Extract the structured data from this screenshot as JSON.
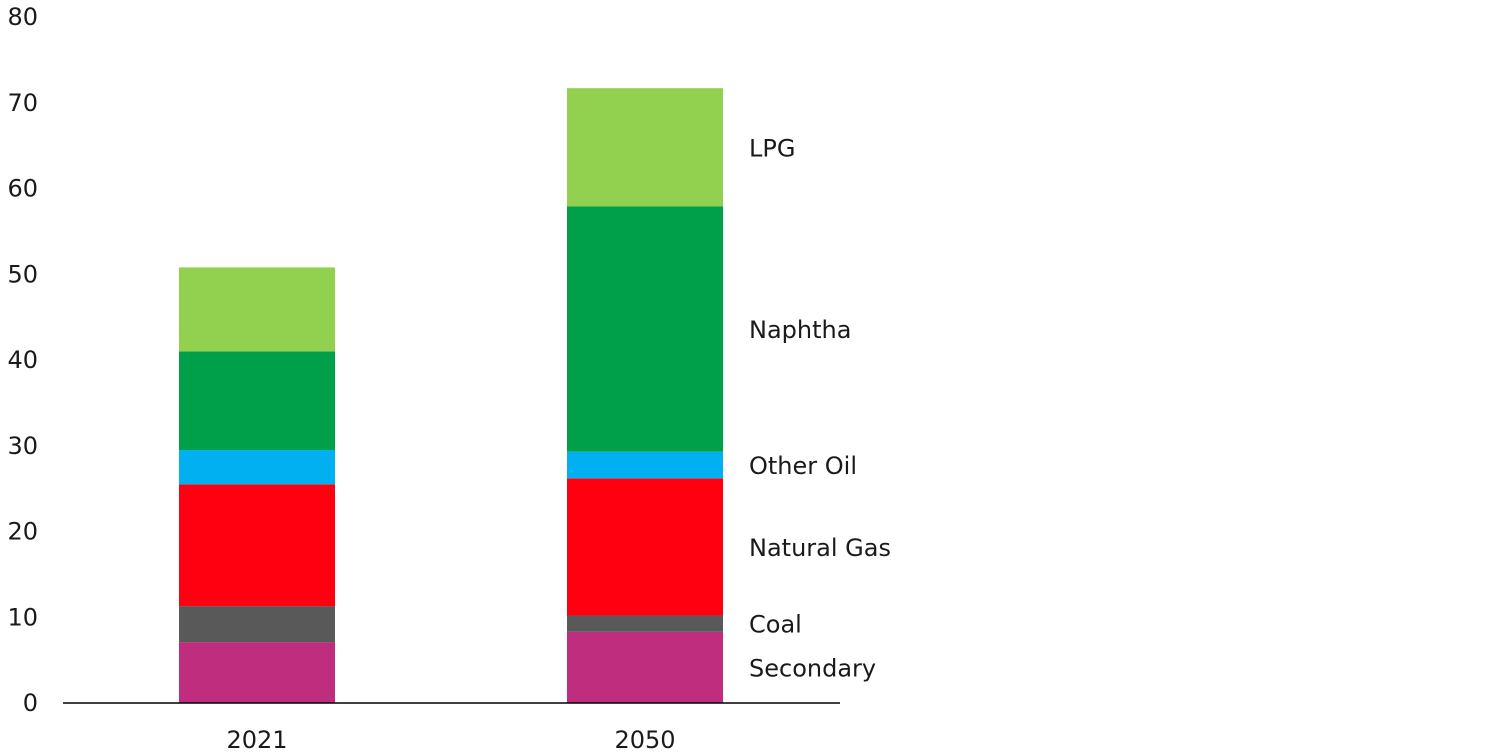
{
  "chart_data": {
    "type": "bar",
    "stacked": true,
    "categories": [
      "2021",
      "2050"
    ],
    "ylim": [
      0,
      80
    ],
    "yticks": [
      0,
      10,
      20,
      30,
      40,
      50,
      60,
      70,
      80
    ],
    "grid": false,
    "legend": "direct labels right of 2050 bar",
    "series": [
      {
        "name": "Secondary",
        "color": "#BE2D7E",
        "values": [
          7.1,
          8.3
        ]
      },
      {
        "name": "Coal",
        "color": "#595959",
        "values": [
          4.2,
          1.9
        ]
      },
      {
        "name": "Natural Gas",
        "color": "#FF0011",
        "values": [
          14.2,
          16.0
        ]
      },
      {
        "name": "Other Oil",
        "color": "#00B0F0",
        "values": [
          4.0,
          3.1
        ]
      },
      {
        "name": "Naphtha",
        "color": "#00A04A",
        "values": [
          11.5,
          28.6
        ]
      },
      {
        "name": "LPG",
        "color": "#92D050",
        "values": [
          9.8,
          13.8
        ]
      }
    ]
  }
}
